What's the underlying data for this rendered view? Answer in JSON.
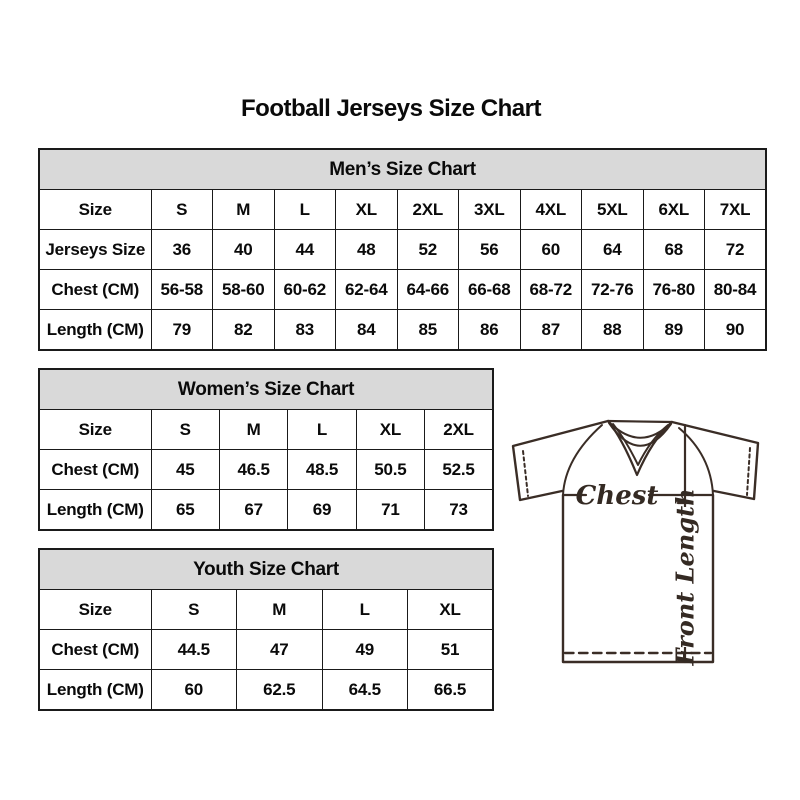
{
  "title": "Football Jerseys Size Chart",
  "colors": {
    "background": "#ffffff",
    "table_header_bg": "#d9d9d9",
    "table_border": "#1a1a1a",
    "text": "#0a0a0a",
    "jersey_line": "#3a2d26"
  },
  "jersey_diagram": {
    "chest_label": "Chest",
    "front_length_label": "Front Length"
  },
  "chart_data": [
    {
      "type": "table",
      "id": "men",
      "title": "Men’s Size Chart",
      "header_row": [
        "Size",
        "S",
        "M",
        "L",
        "XL",
        "2XL",
        "3XL",
        "4XL",
        "5XL",
        "6XL",
        "7XL"
      ],
      "data_rows": [
        [
          "Jerseys Size",
          "36",
          "40",
          "44",
          "48",
          "52",
          "56",
          "60",
          "64",
          "68",
          "72"
        ],
        [
          "Chest (CM)",
          "56-58",
          "58-60",
          "60-62",
          "62-64",
          "64-66",
          "66-68",
          "68-72",
          "72-76",
          "76-80",
          "80-84"
        ],
        [
          "Length (CM)",
          "79",
          "82",
          "83",
          "84",
          "85",
          "86",
          "87",
          "88",
          "89",
          "90"
        ]
      ]
    },
    {
      "type": "table",
      "id": "women",
      "title": "Women’s Size Chart",
      "header_row": [
        "Size",
        "S",
        "M",
        "L",
        "XL",
        "2XL"
      ],
      "data_rows": [
        [
          "Chest (CM)",
          "45",
          "46.5",
          "48.5",
          "50.5",
          "52.5"
        ],
        [
          "Length (CM)",
          "65",
          "67",
          "69",
          "71",
          "73"
        ]
      ]
    },
    {
      "type": "table",
      "id": "youth",
      "title": "Youth Size Chart",
      "header_row": [
        "Size",
        "S",
        "M",
        "L",
        "XL"
      ],
      "data_rows": [
        [
          "Chest (CM)",
          "44.5",
          "47",
          "49",
          "51"
        ],
        [
          "Length (CM)",
          "60",
          "62.5",
          "64.5",
          "66.5"
        ]
      ]
    }
  ]
}
